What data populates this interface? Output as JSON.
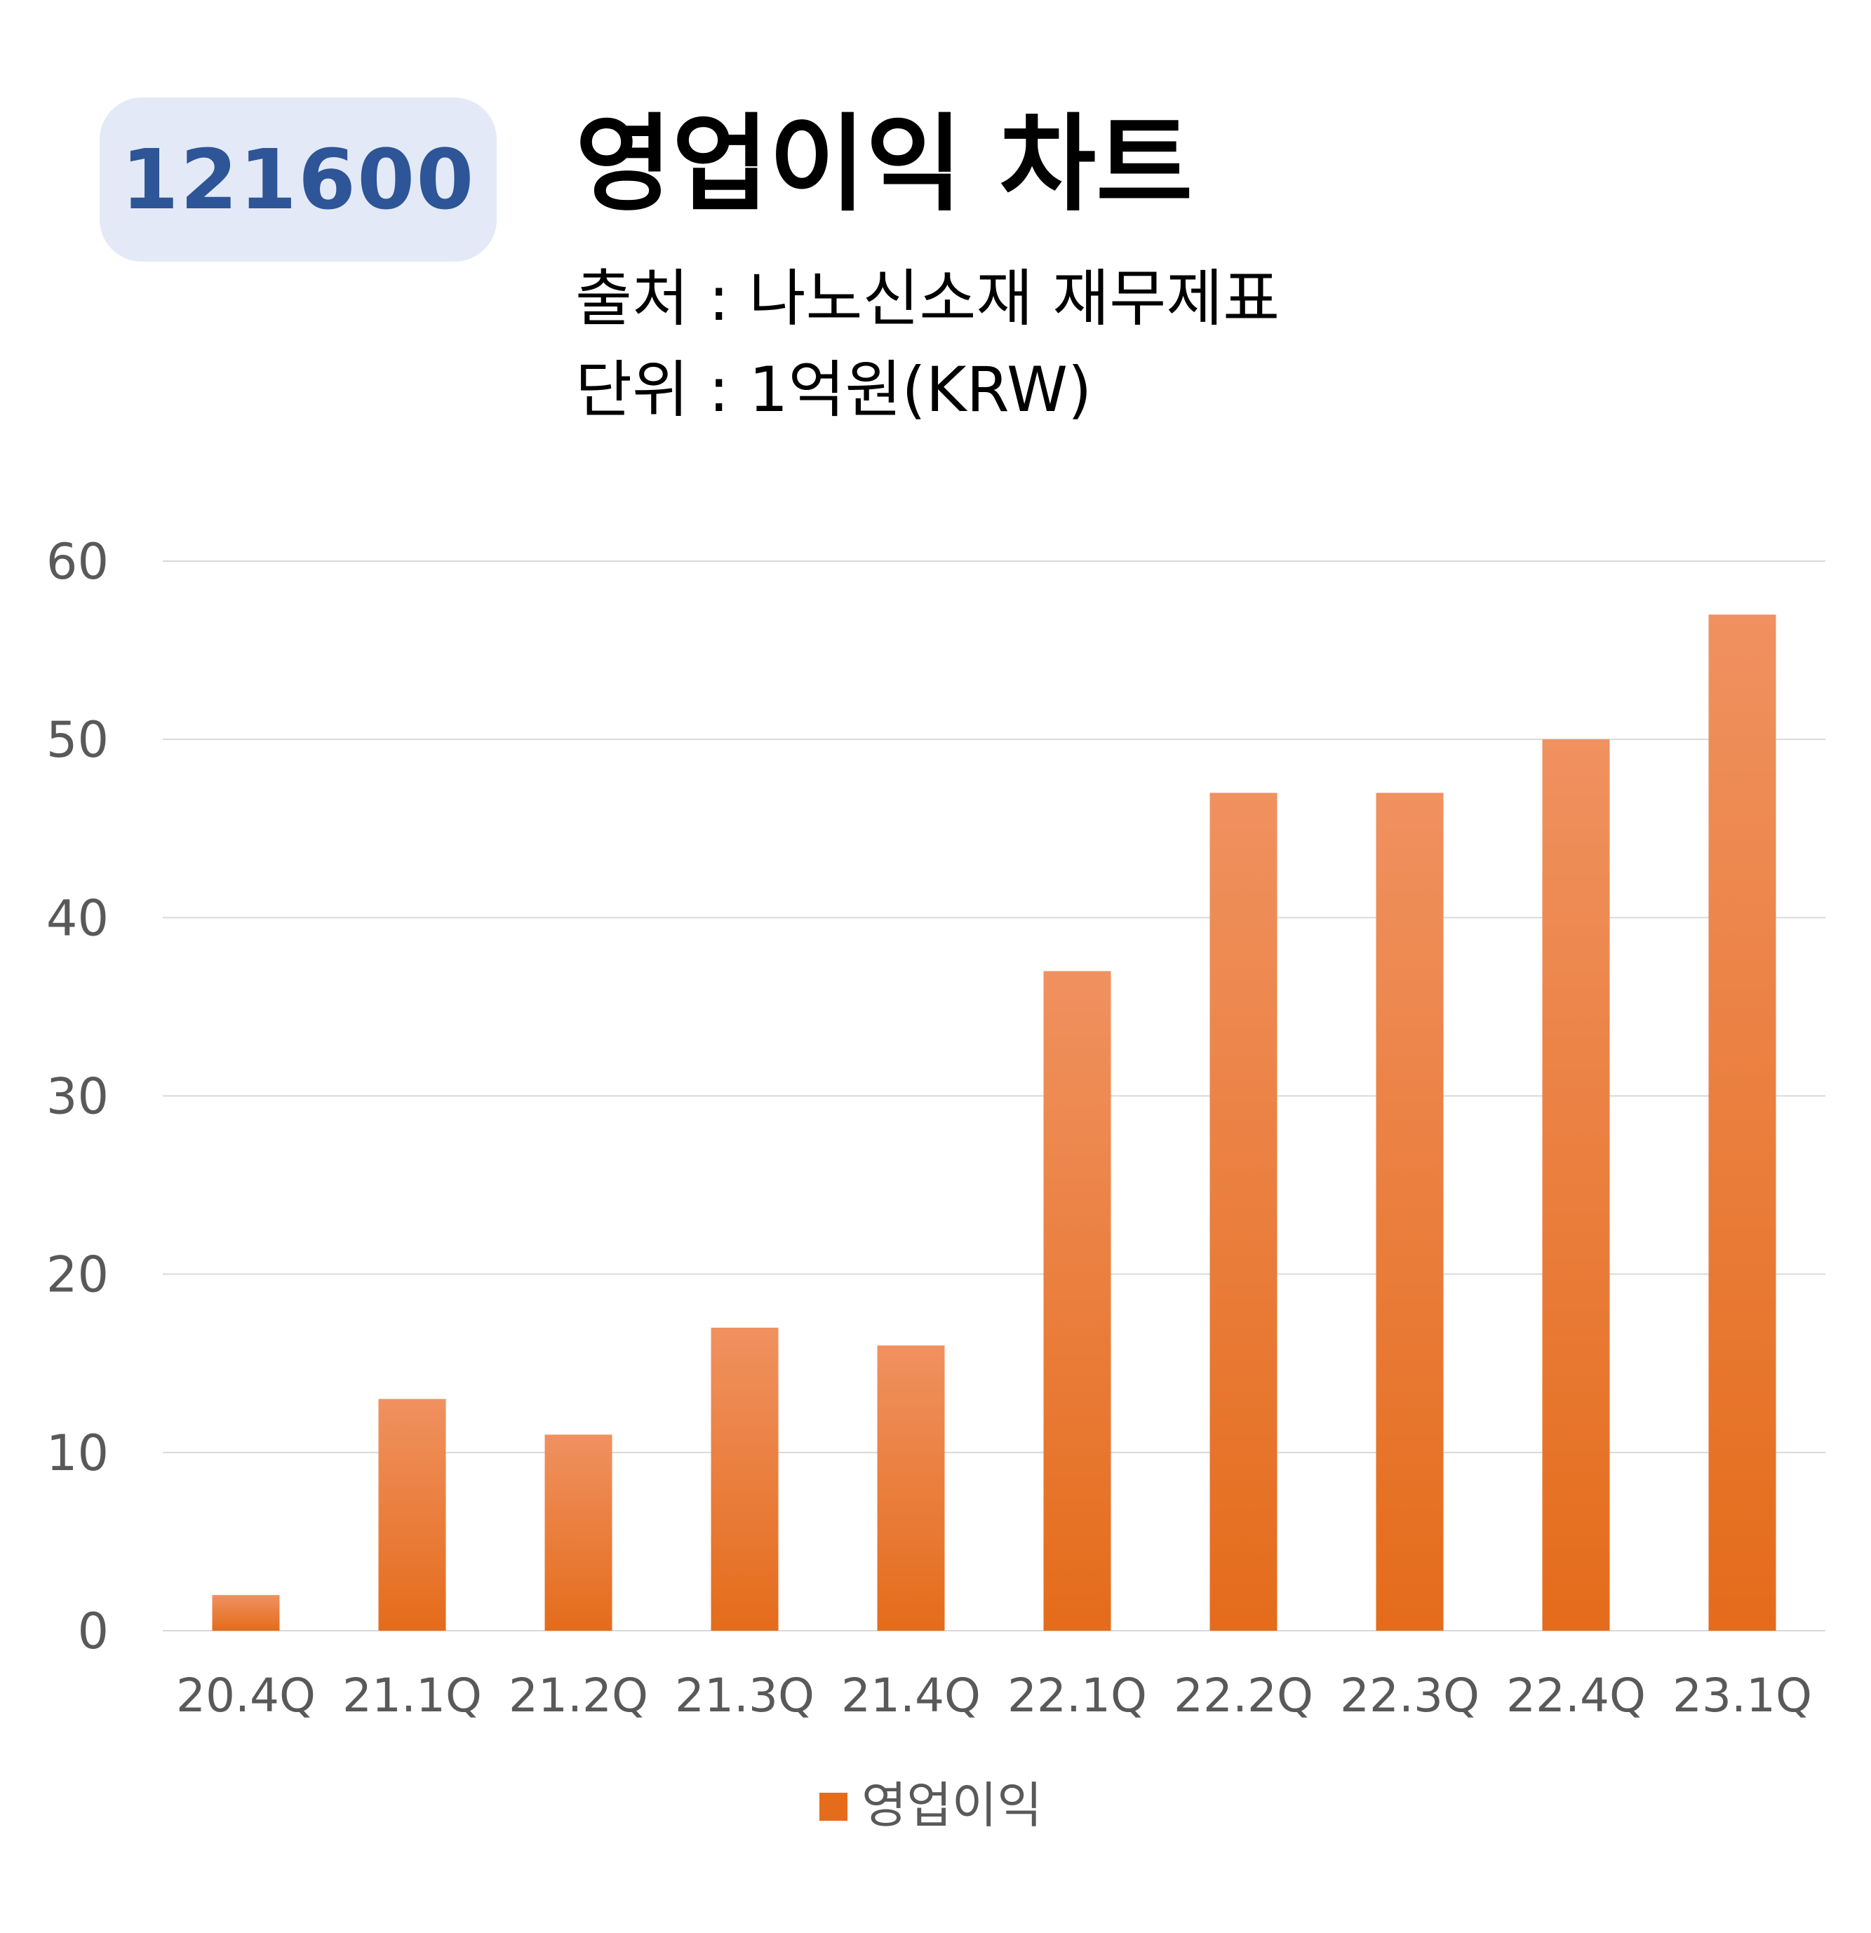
{
  "badge": {
    "code": "121600"
  },
  "header": {
    "title": "영업이익 차트",
    "source": "출처 : 나노신소재 재무제표",
    "unit": "단위 : 1억원(KRW)"
  },
  "colors": {
    "bar_top": "#f09160",
    "bar_bottom": "#e46c1b",
    "badge_bg": "#e3e9f6",
    "badge_text": "#2d5597",
    "grid": "#d9d9d9",
    "tick_text": "#595959"
  },
  "chart_data": {
    "type": "bar",
    "categories": [
      "20.4Q",
      "21.1Q",
      "21.2Q",
      "21.3Q",
      "21.4Q",
      "22.1Q",
      "22.2Q",
      "22.3Q",
      "22.4Q",
      "23.1Q"
    ],
    "series": [
      {
        "name": "영업이익",
        "values": [
          2,
          13,
          11,
          17,
          16,
          37,
          47,
          47,
          50,
          57
        ]
      }
    ],
    "ylim": [
      0,
      60
    ],
    "yticks": [
      "0",
      "10",
      "20",
      "30",
      "40",
      "50",
      "60"
    ],
    "grid": true,
    "legend": "bottom-center"
  }
}
